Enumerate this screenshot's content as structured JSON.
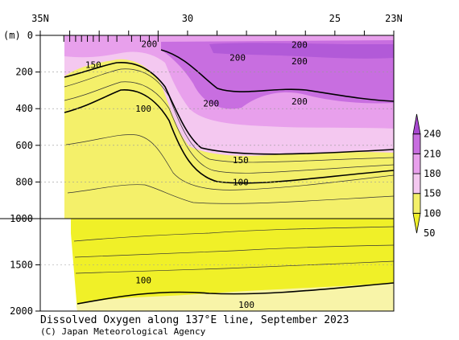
{
  "chart_data": {
    "type": "heatmap",
    "title": "Dissolved Oxygen along 137°E line, September 2023",
    "credit": "(C) Japan Meteorological Agency",
    "y_unit_label": "(m)",
    "x_axis": {
      "range": [
        35,
        23
      ],
      "tick_labels": [
        {
          "value": 35,
          "label": "35N"
        },
        {
          "value": 30,
          "label": "30"
        },
        {
          "value": 25,
          "label": "25"
        },
        {
          "value": 23,
          "label": "23N"
        }
      ]
    },
    "y_axis": {
      "upper_range": [
        0,
        1000
      ],
      "lower_range": [
        1000,
        2000
      ],
      "tick_labels": [
        {
          "value": 0,
          "label": "0"
        },
        {
          "value": 200,
          "label": "200"
        },
        {
          "value": 400,
          "label": "400"
        },
        {
          "value": 600,
          "label": "600"
        },
        {
          "value": 800,
          "label": "800"
        },
        {
          "value": 1000,
          "label": "1000"
        },
        {
          "value": 1500,
          "label": "1500"
        },
        {
          "value": 2000,
          "label": "2000"
        }
      ]
    },
    "colorbar": {
      "levels": [
        {
          "label": "240",
          "value": 240
        },
        {
          "label": "210",
          "value": 210
        },
        {
          "label": "180",
          "value": 180
        },
        {
          "label": "150",
          "value": 150
        },
        {
          "label": "100",
          "value": 100
        },
        {
          "label": "50",
          "value": 50
        }
      ],
      "colors": [
        "#f0f028",
        "#f4f06a",
        "#f4c8f0",
        "#e8a0ec",
        "#c86ee0",
        "#a848d0"
      ]
    },
    "contour_labels": [
      {
        "text": "200",
        "lat": 31.3,
        "depth": 45
      },
      {
        "text": "200",
        "lat": 26.2,
        "depth": 50
      },
      {
        "text": "200",
        "lat": 28.3,
        "depth": 120
      },
      {
        "text": "200",
        "lat": 26.2,
        "depth": 140
      },
      {
        "text": "150",
        "lat": 33.2,
        "depth": 160
      },
      {
        "text": "200",
        "lat": 29.2,
        "depth": 370
      },
      {
        "text": "200",
        "lat": 26.2,
        "depth": 360
      },
      {
        "text": "100",
        "lat": 31.5,
        "depth": 400
      },
      {
        "text": "150",
        "lat": 28.2,
        "depth": 680
      },
      {
        "text": "100",
        "lat": 28.2,
        "depth": 800
      },
      {
        "text": "100",
        "lat": 31.5,
        "depth": 1665
      },
      {
        "text": "100",
        "lat": 28.0,
        "depth": 1930
      }
    ]
  }
}
